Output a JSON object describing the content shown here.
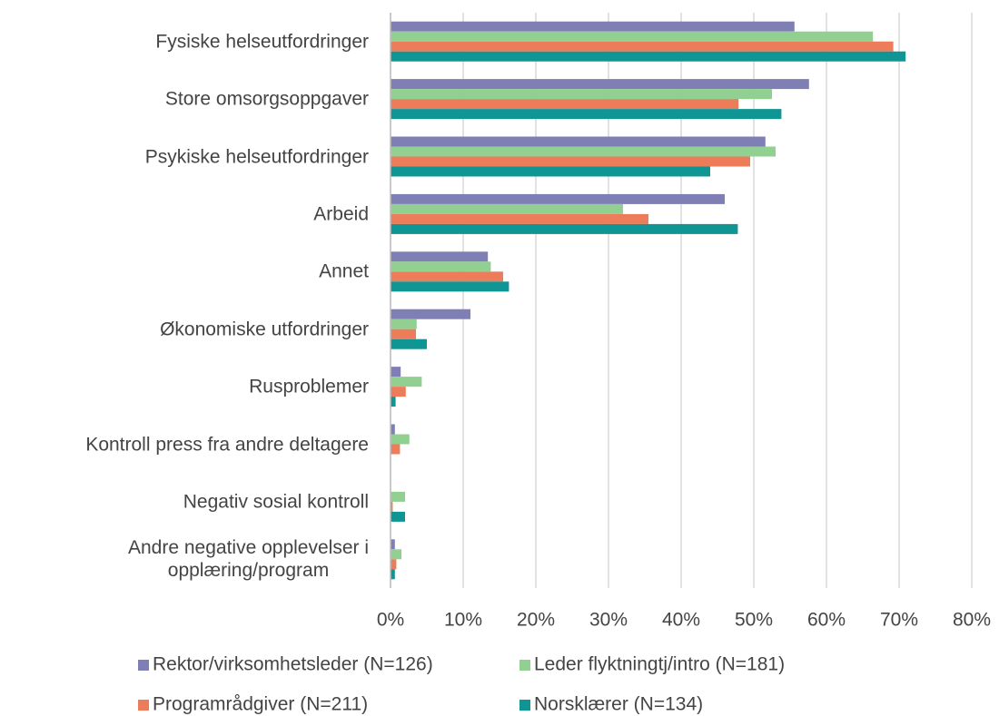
{
  "chart_data": {
    "type": "barh",
    "categories": [
      "Fysiske helseutfordringer",
      "Store omsorgsoppgaver",
      "Psykiske helseutfordringer",
      "Arbeid",
      "Annet",
      "Økonomiske utfordringer",
      "Rusproblemer",
      "Kontroll press fra andre deltagere",
      "Negativ sosial kontroll",
      "Andre negative opplevelser i\nopplæring/program"
    ],
    "series": [
      {
        "name": "Rektor/virksomhetsleder (N=126)",
        "color": "#7f7fb5",
        "values": [
          55.6,
          57.6,
          51.6,
          46,
          13.4,
          11,
          1.4,
          0.6,
          0,
          0.6
        ]
      },
      {
        "name": "Leder flyktningtj/intro (N=181)",
        "color": "#92d092",
        "values": [
          66.4,
          52.5,
          53,
          32,
          13.8,
          3.6,
          4.3,
          2.6,
          2,
          1.5
        ]
      },
      {
        "name": "Programrådgiver (N=211)",
        "color": "#ed7d5a",
        "values": [
          69.2,
          47.9,
          49.5,
          35.5,
          15.5,
          3.5,
          2.1,
          1.3,
          0.3,
          0.8
        ]
      },
      {
        "name": "Norsklærer (N=134)",
        "color": "#0e9594",
        "values": [
          70.9,
          53.8,
          44,
          47.8,
          16.3,
          5,
          0.7,
          0,
          2,
          0.6
        ]
      }
    ],
    "xlim": [
      0,
      80
    ],
    "xticks": [
      {
        "value": 0,
        "label": "0%"
      },
      {
        "value": 10,
        "label": "10%"
      },
      {
        "value": 20,
        "label": "20%"
      },
      {
        "value": 30,
        "label": "30%"
      },
      {
        "value": 40,
        "label": "40%"
      },
      {
        "value": 50,
        "label": "50%"
      },
      {
        "value": 60,
        "label": "60%"
      },
      {
        "value": 70,
        "label": "70%"
      },
      {
        "value": 80,
        "label": "80%"
      }
    ],
    "grid": true,
    "legend": "bottom"
  }
}
